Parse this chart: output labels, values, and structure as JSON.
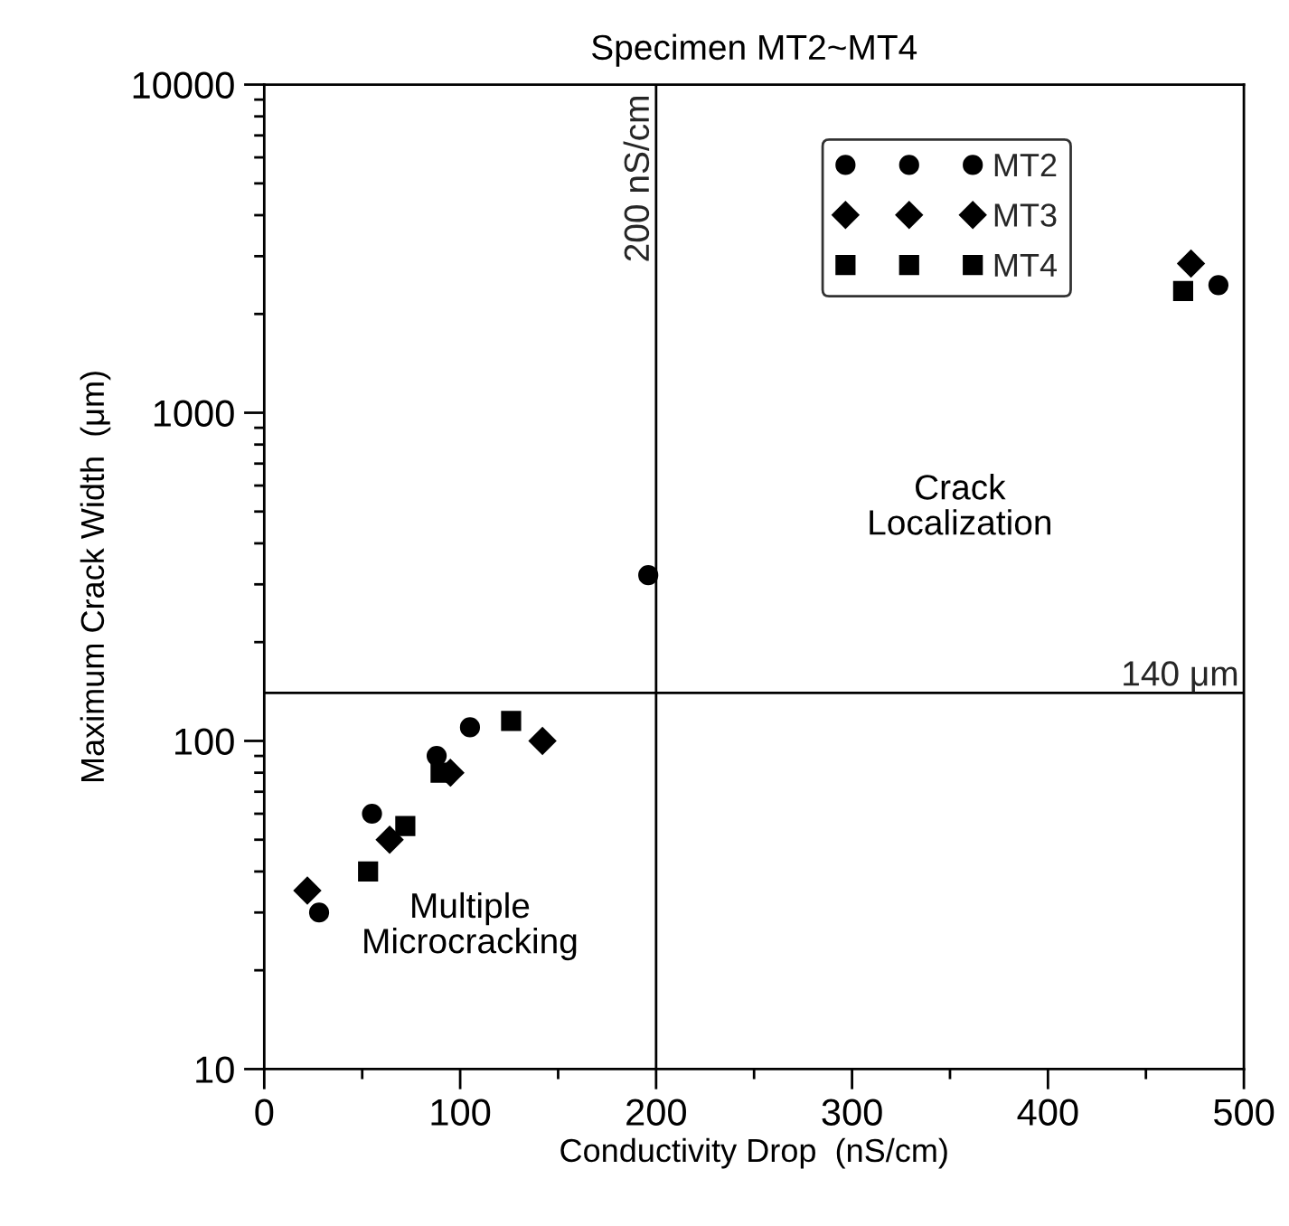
{
  "chart_data": {
    "type": "scatter",
    "title": "Specimen MT2~MT4",
    "xlabel": "Conductivity Drop  (nS/cm)",
    "ylabel": "Maximum Crack Width  (μm)",
    "series": [
      {
        "name": "MT2",
        "color": "#000000",
        "marker": "circle",
        "x": [
          28,
          55,
          88,
          105,
          196,
          487
        ],
        "values": [
          30,
          60,
          90,
          110,
          320,
          2450
        ]
      },
      {
        "name": "MT3",
        "color": "#000000",
        "marker": "diamond",
        "x": [
          22,
          64,
          95,
          142,
          473
        ],
        "values": [
          35,
          50,
          80,
          100,
          2850
        ]
      },
      {
        "name": "MT4",
        "color": "#000000",
        "marker": "square",
        "x": [
          53,
          72,
          90,
          126,
          469
        ],
        "values": [
          40,
          55,
          80,
          115,
          2350
        ]
      }
    ],
    "log": "y",
    "xlim": [
      0,
      500
    ],
    "xticks": [
      0,
      100,
      200,
      300,
      400,
      500
    ],
    "ylim": [
      10,
      10000
    ],
    "yticks": [
      10,
      100,
      1000,
      10000
    ],
    "ref_lines": [
      {
        "axis": "x",
        "value": 200,
        "label": "200 nS/cm"
      },
      {
        "axis": "y",
        "value": 140,
        "label": "140 μm"
      }
    ],
    "annotations": [
      "Crack\nLocalization",
      "Multiple\nMicrocracking"
    ],
    "legend": "top right",
    "grid": false
  }
}
